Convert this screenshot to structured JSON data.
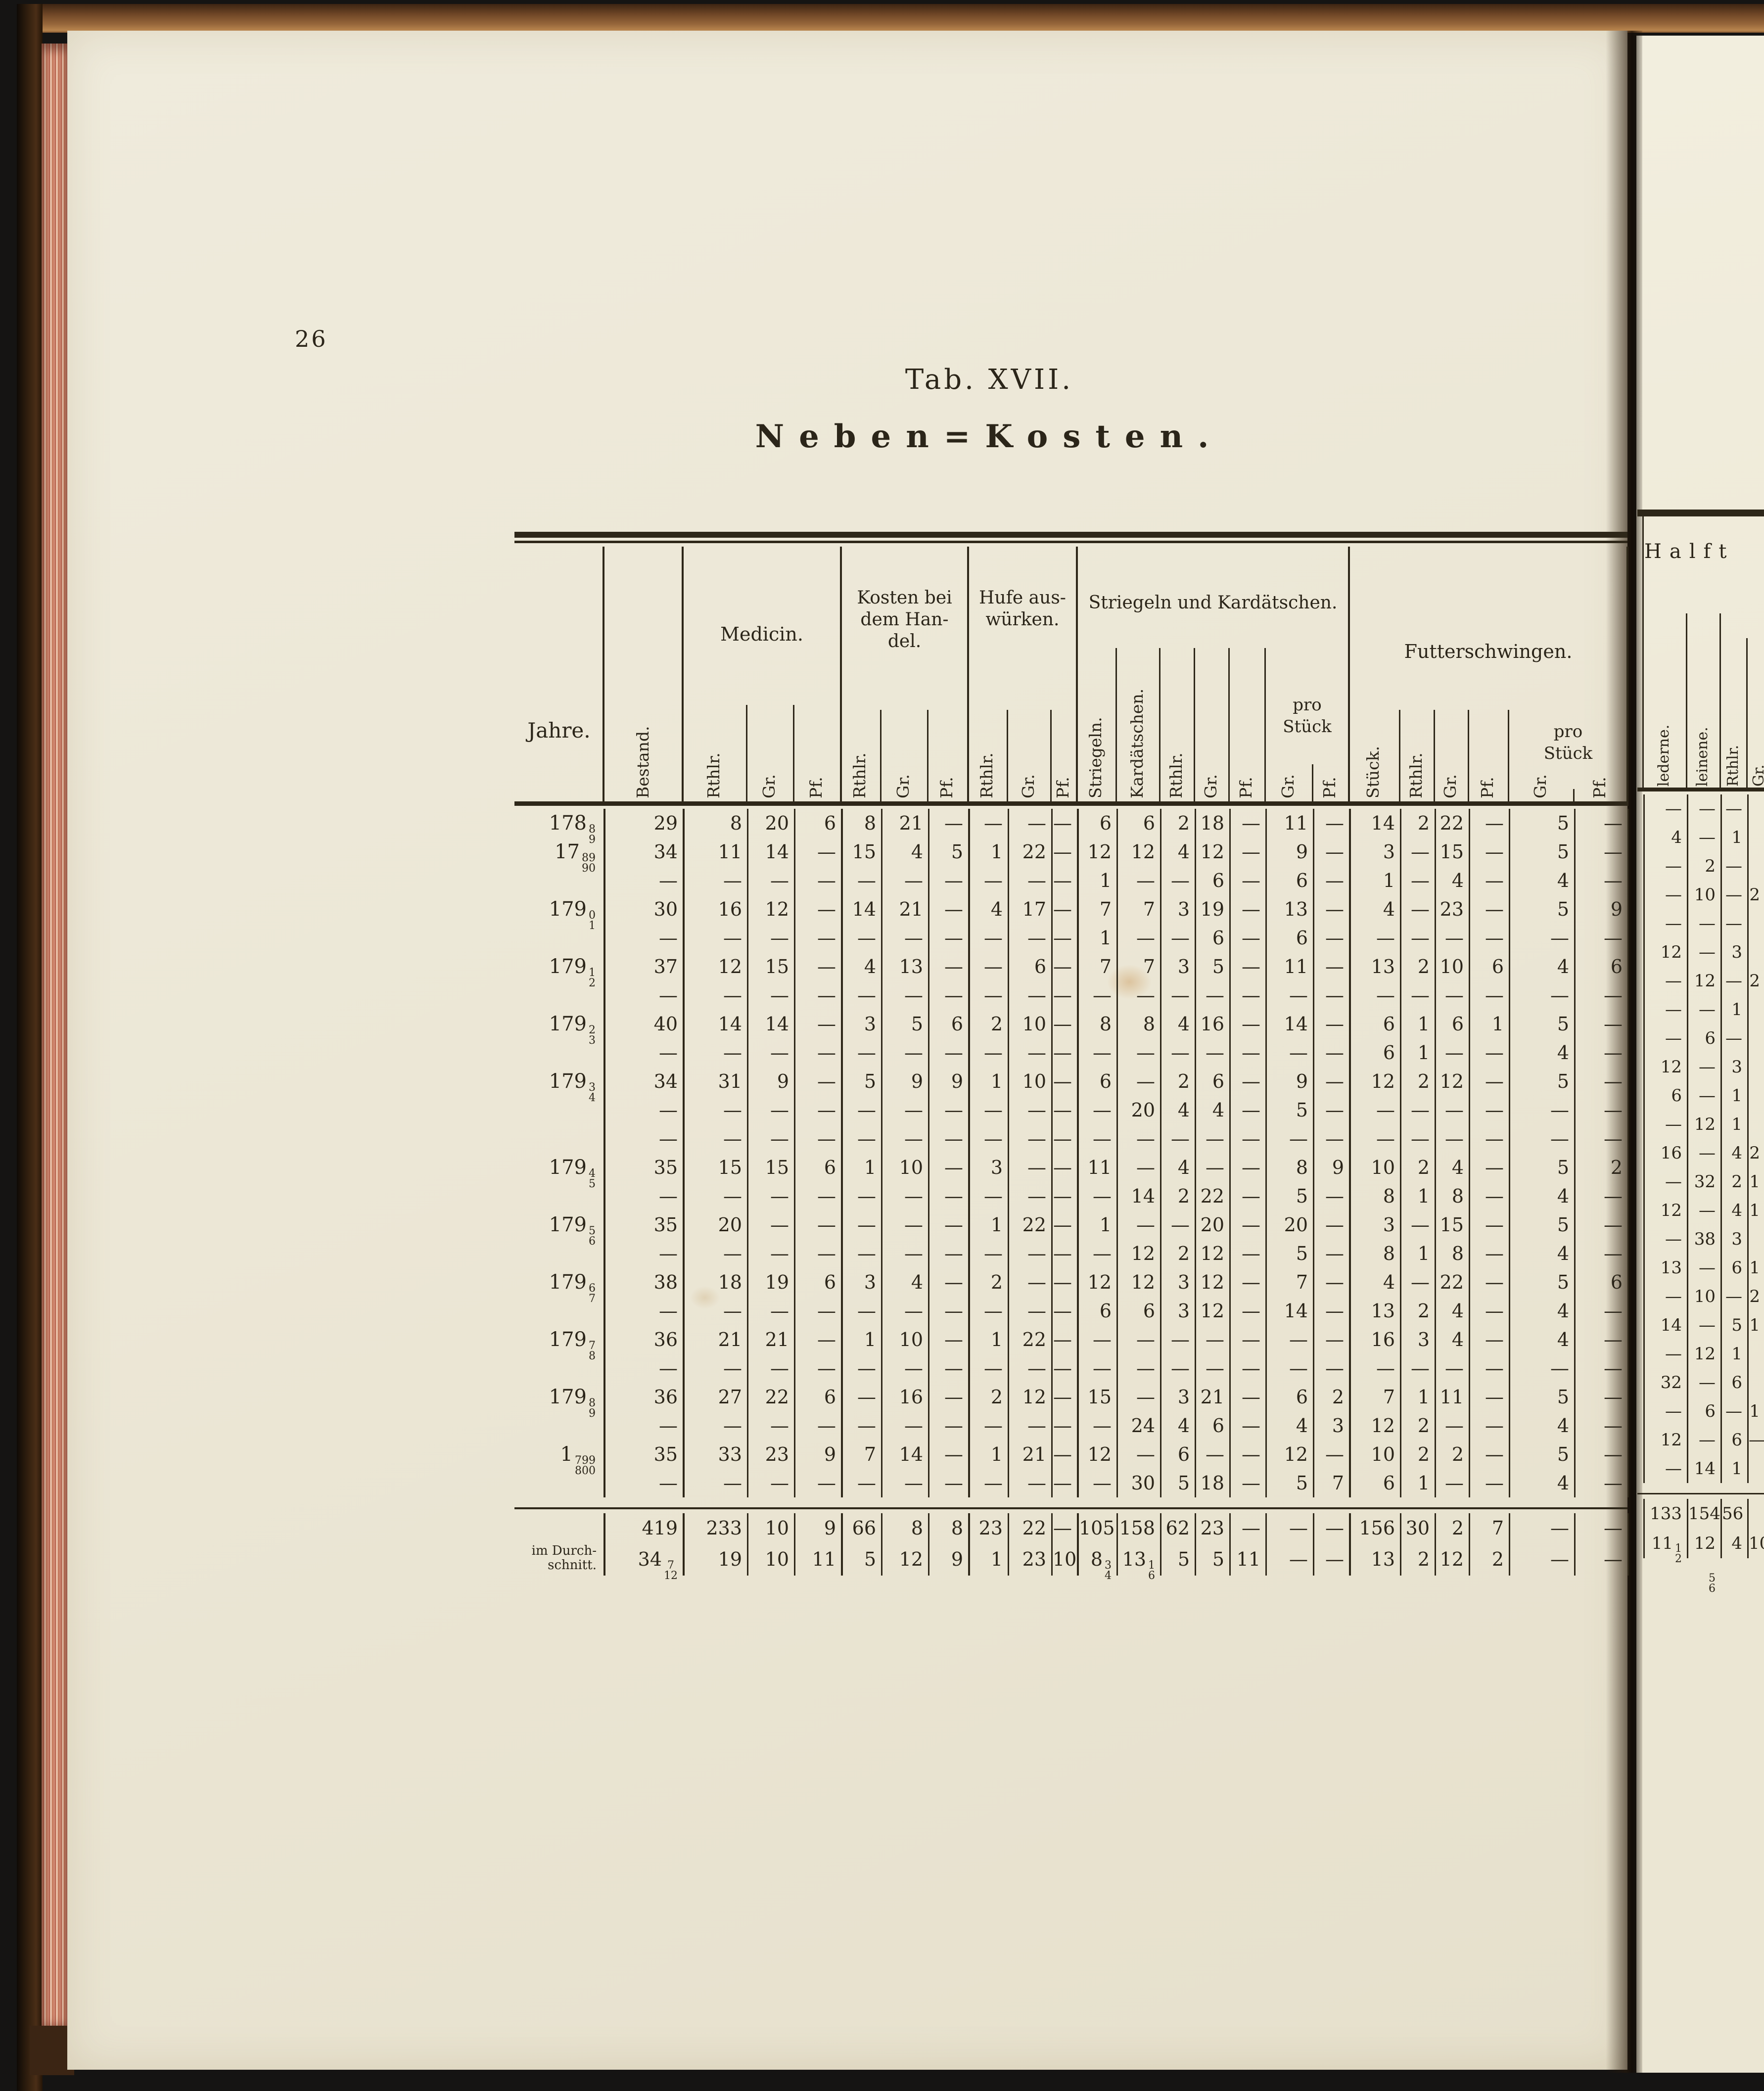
{
  "page": {
    "number": "26"
  },
  "heading": {
    "title": "Tab. XVII.",
    "subtitle": "Neben=Kosten."
  },
  "table": {
    "headers": {
      "jahre": "Jahre.",
      "bestand": "Bestand.",
      "medicin": "Medicin.",
      "handel_lines": [
        "Kosten bei",
        "dem Han-",
        "del."
      ],
      "hufe_lines": [
        "Hufe aus-",
        "würken."
      ],
      "striegeln_kardaetschen": "Striegeln und Kardätschen.",
      "futterschwingen": "Futterschwingen.",
      "pro_stueck_lines": [
        "pro",
        "Stück"
      ],
      "rthlr": "Rthlr.",
      "gr": "Gr.",
      "pf": "Pf.",
      "striegeln": "Striegeln.",
      "kardaetschen": "Kardätschen.",
      "stueck": "Stück."
    },
    "rows": [
      {
        "year": {
          "b": "178",
          "n": "8",
          "d": "9"
        },
        "cells": [
          "29",
          "8",
          "20",
          "6",
          "8",
          "21",
          "—",
          "—",
          "—",
          "—",
          "6",
          "6",
          "2",
          "18",
          "—",
          "11",
          "—",
          "14",
          "2",
          "22",
          "—",
          "5",
          "—"
        ]
      },
      {
        "year": {
          "b": "17",
          "n": "89",
          "d": "90"
        },
        "cells": [
          "34",
          "11",
          "14",
          "—",
          "15",
          "4",
          "5",
          "1",
          "22",
          "—",
          "12",
          "12",
          "4",
          "12",
          "—",
          "9",
          "—",
          "3",
          "—",
          "15",
          "—",
          "5",
          "—"
        ]
      },
      {
        "year": null,
        "cells": [
          "—",
          "—",
          "—",
          "—",
          "—",
          "—",
          "—",
          "—",
          "—",
          "—",
          "1",
          "—",
          "—",
          "6",
          "—",
          "6",
          "—",
          "1",
          "—",
          "4",
          "—",
          "4",
          "—"
        ]
      },
      {
        "year": {
          "b": "179",
          "n": "0",
          "d": "1"
        },
        "cells": [
          "30",
          "16",
          "12",
          "—",
          "14",
          "21",
          "—",
          "4",
          "17",
          "—",
          "7",
          "7",
          "3",
          "19",
          "—",
          "13",
          "—",
          "4",
          "—",
          "23",
          "—",
          "5",
          "9"
        ]
      },
      {
        "year": null,
        "cells": [
          "—",
          "—",
          "—",
          "—",
          "—",
          "—",
          "—",
          "—",
          "—",
          "—",
          "1",
          "—",
          "—",
          "6",
          "—",
          "6",
          "—",
          "—",
          "—",
          "—",
          "—",
          "—",
          "—"
        ]
      },
      {
        "year": {
          "b": "179",
          "n": "1",
          "d": "2"
        },
        "cells": [
          "37",
          "12",
          "15",
          "—",
          "4",
          "13",
          "—",
          "—",
          "6",
          "—",
          "7",
          "7",
          "3",
          "5",
          "—",
          "11",
          "—",
          "13",
          "2",
          "10",
          "6",
          "4",
          "6"
        ]
      },
      {
        "year": null,
        "cells": [
          "—",
          "—",
          "—",
          "—",
          "—",
          "—",
          "—",
          "—",
          "—",
          "—",
          "—",
          "—",
          "—",
          "—",
          "—",
          "—",
          "—",
          "—",
          "—",
          "—",
          "—",
          "—",
          "—"
        ]
      },
      {
        "year": {
          "b": "179",
          "n": "2",
          "d": "3"
        },
        "cells": [
          "40",
          "14",
          "14",
          "—",
          "3",
          "5",
          "6",
          "2",
          "10",
          "—",
          "8",
          "8",
          "4",
          "16",
          "—",
          "14",
          "—",
          "6",
          "1",
          "6",
          "1",
          "5",
          "—"
        ]
      },
      {
        "year": null,
        "cells": [
          "—",
          "—",
          "—",
          "—",
          "—",
          "—",
          "—",
          "—",
          "—",
          "—",
          "—",
          "—",
          "—",
          "—",
          "—",
          "—",
          "—",
          "6",
          "1",
          "—",
          "—",
          "4",
          "—"
        ]
      },
      {
        "year": {
          "b": "179",
          "n": "3",
          "d": "4"
        },
        "cells": [
          "34",
          "31",
          "9",
          "—",
          "5",
          "9",
          "9",
          "1",
          "10",
          "—",
          "6",
          "—",
          "2",
          "6",
          "—",
          "9",
          "—",
          "12",
          "2",
          "12",
          "—",
          "5",
          "—"
        ]
      },
      {
        "year": null,
        "cells": [
          "—",
          "—",
          "—",
          "—",
          "—",
          "—",
          "—",
          "—",
          "—",
          "—",
          "—",
          "20",
          "4",
          "4",
          "—",
          "5",
          "—",
          "—",
          "—",
          "—",
          "—",
          "—",
          "—"
        ]
      },
      {
        "year": null,
        "cells": [
          "—",
          "—",
          "—",
          "—",
          "—",
          "—",
          "—",
          "—",
          "—",
          "—",
          "—",
          "—",
          "—",
          "—",
          "—",
          "—",
          "—",
          "—",
          "—",
          "—",
          "—",
          "—",
          "—"
        ]
      },
      {
        "year": {
          "b": "179",
          "n": "4",
          "d": "5"
        },
        "cells": [
          "35",
          "15",
          "15",
          "6",
          "1",
          "10",
          "—",
          "3",
          "—",
          "—",
          "11",
          "—",
          "4",
          "—",
          "—",
          "8",
          "9",
          "10",
          "2",
          "4",
          "—",
          "5",
          "2"
        ]
      },
      {
        "year": null,
        "cells": [
          "—",
          "—",
          "—",
          "—",
          "—",
          "—",
          "—",
          "—",
          "—",
          "—",
          "—",
          "14",
          "2",
          "22",
          "—",
          "5",
          "—",
          "8",
          "1",
          "8",
          "—",
          "4",
          "—"
        ]
      },
      {
        "year": {
          "b": "179",
          "n": "5",
          "d": "6"
        },
        "cells": [
          "35",
          "20",
          "—",
          "—",
          "—",
          "—",
          "—",
          "1",
          "22",
          "—",
          "1",
          "—",
          "—",
          "20",
          "—",
          "20",
          "—",
          "3",
          "—",
          "15",
          "—",
          "5",
          "—"
        ]
      },
      {
        "year": null,
        "cells": [
          "—",
          "—",
          "—",
          "—",
          "—",
          "—",
          "—",
          "—",
          "—",
          "—",
          "—",
          "12",
          "2",
          "12",
          "—",
          "5",
          "—",
          "8",
          "1",
          "8",
          "—",
          "4",
          "—"
        ]
      },
      {
        "year": {
          "b": "179",
          "n": "6",
          "d": "7"
        },
        "cells": [
          "38",
          "18",
          "19",
          "6",
          "3",
          "4",
          "—",
          "2",
          "—",
          "—",
          "12",
          "12",
          "3",
          "12",
          "—",
          "7",
          "—",
          "4",
          "—",
          "22",
          "—",
          "5",
          "6"
        ]
      },
      {
        "year": null,
        "cells": [
          "—",
          "—",
          "—",
          "—",
          "—",
          "—",
          "—",
          "—",
          "—",
          "—",
          "6",
          "6",
          "3",
          "12",
          "—",
          "14",
          "—",
          "13",
          "2",
          "4",
          "—",
          "4",
          "—"
        ]
      },
      {
        "year": {
          "b": "179",
          "n": "7",
          "d": "8"
        },
        "cells": [
          "36",
          "21",
          "21",
          "—",
          "1",
          "10",
          "—",
          "1",
          "22",
          "—",
          "—",
          "—",
          "—",
          "—",
          "—",
          "—",
          "—",
          "16",
          "3",
          "4",
          "—",
          "4",
          "—"
        ]
      },
      {
        "year": null,
        "cells": [
          "—",
          "—",
          "—",
          "—",
          "—",
          "—",
          "—",
          "—",
          "—",
          "—",
          "—",
          "—",
          "—",
          "—",
          "—",
          "—",
          "—",
          "—",
          "—",
          "—",
          "—",
          "—",
          "—"
        ]
      },
      {
        "year": {
          "b": "179",
          "n": "8",
          "d": "9"
        },
        "cells": [
          "36",
          "27",
          "22",
          "6",
          "—",
          "16",
          "—",
          "2",
          "12",
          "—",
          "15",
          "—",
          "3",
          "21",
          "—",
          "6",
          "2",
          "7",
          "1",
          "11",
          "—",
          "5",
          "—"
        ]
      },
      {
        "year": null,
        "cells": [
          "—",
          "—",
          "—",
          "—",
          "—",
          "—",
          "—",
          "—",
          "—",
          "—",
          "—",
          "24",
          "4",
          "6",
          "—",
          "4",
          "3",
          "12",
          "2",
          "—",
          "—",
          "4",
          "—"
        ]
      },
      {
        "year": {
          "b": "1",
          "n": "799",
          "d": "800"
        },
        "cells": [
          "35",
          "33",
          "23",
          "9",
          "7",
          "14",
          "—",
          "1",
          "21",
          "—",
          "12",
          "—",
          "6",
          "—",
          "—",
          "12",
          "—",
          "10",
          "2",
          "2",
          "—",
          "5",
          "—"
        ]
      },
      {
        "year": null,
        "cells": [
          "—",
          "—",
          "—",
          "—",
          "—",
          "—",
          "—",
          "—",
          "—",
          "—",
          "—",
          "30",
          "5",
          "18",
          "—",
          "5",
          "7",
          "6",
          "1",
          "—",
          "—",
          "4",
          "—"
        ]
      }
    ],
    "total_row": {
      "cells": [
        "419",
        "233",
        "10",
        "9",
        "66",
        "8",
        "8",
        "23",
        "22",
        "—",
        "105",
        "158",
        "62",
        "23",
        "—",
        "—",
        "—",
        "156",
        "30",
        "2",
        "7",
        "—",
        "—"
      ]
    },
    "average_row": {
      "label_lines": [
        "im Durch-",
        "schnitt."
      ],
      "cells": [
        {
          "b": "34",
          "n": "7",
          "d": "12"
        },
        "19",
        "10",
        "11",
        "5",
        "12",
        "9",
        "1",
        "23",
        "10",
        {
          "b": "8",
          "n": "3",
          "d": "4"
        },
        {
          "b": "13",
          "n": "1",
          "d": "6"
        },
        "5",
        "5",
        "11",
        "—",
        "—",
        "13",
        "2",
        "12",
        "2",
        "—",
        "—"
      ]
    }
  },
  "next_page_strip": {
    "title_fragment": "Halft",
    "column_labels": [
      "lederne.",
      "leinene.",
      "Rthlr.",
      "Gr."
    ],
    "rows": [
      [
        "—",
        "—",
        "—",
        ""
      ],
      [
        "4",
        "—",
        "1",
        ""
      ],
      [
        "—",
        "2",
        "—",
        ""
      ],
      [
        "—",
        "10",
        "—",
        "2"
      ],
      [
        "—",
        "—",
        "—",
        ""
      ],
      [
        "12",
        "—",
        "3",
        ""
      ],
      [
        "—",
        "12",
        "—",
        "2"
      ],
      [
        "—",
        "—",
        "1",
        ""
      ],
      [
        "—",
        "6",
        "—",
        ""
      ],
      [
        "12",
        "—",
        "3",
        ""
      ],
      [
        "6",
        "—",
        "1",
        ""
      ],
      [
        "—",
        "12",
        "1",
        ""
      ],
      [
        "16",
        "—",
        "4",
        "2"
      ],
      [
        "—",
        "32",
        "2",
        "1"
      ],
      [
        "12",
        "—",
        "4",
        "1"
      ],
      [
        "—",
        "38",
        "3",
        ""
      ],
      [
        "13",
        "—",
        "6",
        "1"
      ],
      [
        "—",
        "10",
        "—",
        "2"
      ],
      [
        "14",
        "—",
        "5",
        "1"
      ],
      [
        "—",
        "12",
        "1",
        ""
      ],
      [
        "32",
        "—",
        "6",
        ""
      ],
      [
        "—",
        "6",
        "—",
        "1"
      ],
      [
        "12",
        "—",
        "6",
        "—"
      ],
      [
        "—",
        "14",
        "1",
        ""
      ]
    ],
    "total_rows": [
      [
        "133",
        "154",
        "56",
        ""
      ],
      [
        {
          "b": "11",
          "n": "1",
          "d": "2"
        },
        {
          "b": "12",
          "n": "5",
          "d": "6"
        },
        "4",
        "10"
      ]
    ]
  }
}
